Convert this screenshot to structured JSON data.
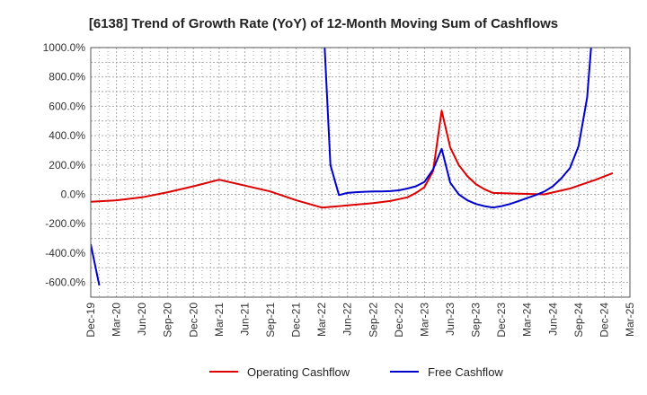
{
  "chart_data": {
    "type": "line",
    "title": "[6138]  Trend of Growth Rate (YoY) of 12-Month Moving Sum of Cashflows",
    "xlabel": "",
    "ylabel": "",
    "ylim": [
      -700,
      1000
    ],
    "yticks": [
      1000,
      800,
      600,
      400,
      200,
      0,
      -200,
      -400,
      -600
    ],
    "ytick_labels": [
      "1000.0%",
      "800.0%",
      "600.0%",
      "400.0%",
      "200.0%",
      "0.0%",
      "-200.0%",
      "-400.0%",
      "-600.0%"
    ],
    "x_tick_labels": [
      "Dec-19",
      "Mar-20",
      "Jun-20",
      "Sep-20",
      "Dec-20",
      "Mar-21",
      "Jun-21",
      "Sep-21",
      "Dec-21",
      "Mar-22",
      "Jun-22",
      "Sep-22",
      "Dec-22",
      "Mar-23",
      "Jun-23",
      "Sep-23",
      "Dec-23",
      "Mar-24",
      "Jun-24",
      "Sep-24",
      "Dec-24",
      "Mar-25"
    ],
    "x_range": [
      0,
      63
    ],
    "grid": true,
    "legend_position": "bottom",
    "series": [
      {
        "name": "Operating Cashflow",
        "color": "#dd0000",
        "points": [
          [
            0,
            -50
          ],
          [
            3,
            -40
          ],
          [
            6,
            -20
          ],
          [
            9,
            15
          ],
          [
            12,
            55
          ],
          [
            15,
            100
          ],
          [
            18,
            60
          ],
          [
            21,
            20
          ],
          [
            24,
            -40
          ],
          [
            27,
            -90
          ],
          [
            30,
            -75
          ],
          [
            33,
            -60
          ],
          [
            35,
            -45
          ],
          [
            37,
            -20
          ],
          [
            38,
            10
          ],
          [
            39,
            50
          ],
          [
            40,
            160
          ],
          [
            41,
            570
          ],
          [
            42,
            320
          ],
          [
            43,
            200
          ],
          [
            44,
            125
          ],
          [
            45,
            70
          ],
          [
            46,
            35
          ],
          [
            47,
            10
          ],
          [
            50,
            5
          ],
          [
            53,
            0
          ],
          [
            56,
            40
          ],
          [
            59,
            100
          ],
          [
            61,
            145
          ]
        ]
      },
      {
        "name": "Free Cashflow",
        "color": "#0000cc",
        "points_segments": [
          [
            [
              0,
              -340
            ],
            [
              1,
              -620
            ]
          ],
          [
            [
              27,
              1400
            ],
            [
              28,
              200
            ],
            [
              29,
              -5
            ],
            [
              30,
              10
            ],
            [
              31,
              15
            ],
            [
              32,
              18
            ],
            [
              33,
              20
            ],
            [
              34,
              20
            ],
            [
              35,
              22
            ],
            [
              36,
              28
            ],
            [
              37,
              40
            ],
            [
              38,
              55
            ],
            [
              39,
              85
            ],
            [
              40,
              170
            ],
            [
              41,
              310
            ],
            [
              42,
              80
            ],
            [
              43,
              0
            ],
            [
              44,
              -40
            ],
            [
              45,
              -65
            ],
            [
              46,
              -80
            ],
            [
              47,
              -90
            ],
            [
              48,
              -80
            ],
            [
              49,
              -65
            ],
            [
              50,
              -45
            ],
            [
              51,
              -25
            ],
            [
              52,
              -5
            ],
            [
              53,
              20
            ],
            [
              54,
              55
            ],
            [
              55,
              110
            ],
            [
              56,
              180
            ],
            [
              57,
              330
            ],
            [
              58,
              660
            ],
            [
              59,
              1400
            ]
          ]
        ]
      }
    ]
  }
}
